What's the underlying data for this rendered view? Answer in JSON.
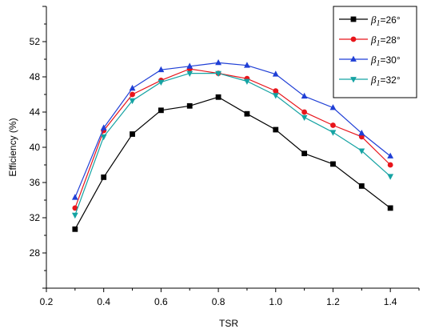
{
  "chart_data": {
    "type": "line",
    "xlabel": "TSR",
    "ylabel": "Efficiency (%)",
    "xlim": [
      0.2,
      1.5
    ],
    "ylim": [
      24,
      56
    ],
    "xticks": [
      0.2,
      0.4,
      0.6,
      0.8,
      1.0,
      1.2,
      1.4
    ],
    "xtick_labels": [
      "0.2",
      "0.4",
      "0.6",
      "0.8",
      "1.0",
      "1.2",
      "1.4"
    ],
    "yticks": [
      28,
      32,
      36,
      40,
      44,
      48,
      52
    ],
    "ytick_labels": [
      "28",
      "32",
      "36",
      "40",
      "44",
      "48",
      "52"
    ],
    "grid": false,
    "legend_position": "top-right",
    "x": [
      0.3,
      0.4,
      0.5,
      0.6,
      0.7,
      0.8,
      0.9,
      1.0,
      1.1,
      1.2,
      1.3,
      1.4
    ],
    "series": [
      {
        "name": "β1=26°",
        "label_symbol": "β",
        "label_sub": "1",
        "label_value": "=26°",
        "color": "#000000",
        "marker": "square",
        "values": [
          30.7,
          36.6,
          41.5,
          44.2,
          44.7,
          45.7,
          43.8,
          42.0,
          39.3,
          38.1,
          35.6,
          33.1
        ]
      },
      {
        "name": "β1=28°",
        "label_symbol": "β",
        "label_sub": "1",
        "label_value": "=28°",
        "color": "#e8151b",
        "marker": "circle",
        "values": [
          33.1,
          41.9,
          46.0,
          47.6,
          48.9,
          48.4,
          47.8,
          46.4,
          44.0,
          42.5,
          41.2,
          38.0
        ]
      },
      {
        "name": "β1=30°",
        "label_symbol": "β",
        "label_sub": "1",
        "label_value": "=30°",
        "color": "#1f3fd6",
        "marker": "triangle-up",
        "values": [
          34.3,
          42.2,
          46.7,
          48.8,
          49.2,
          49.6,
          49.3,
          48.3,
          45.8,
          44.5,
          41.6,
          39.0
        ]
      },
      {
        "name": "β1=32°",
        "label_symbol": "β",
        "label_sub": "1",
        "label_value": "=32°",
        "color": "#15a3a3",
        "marker": "triangle-down",
        "values": [
          32.3,
          41.2,
          45.3,
          47.4,
          48.4,
          48.4,
          47.5,
          45.9,
          43.4,
          41.7,
          39.6,
          36.7
        ]
      }
    ]
  }
}
